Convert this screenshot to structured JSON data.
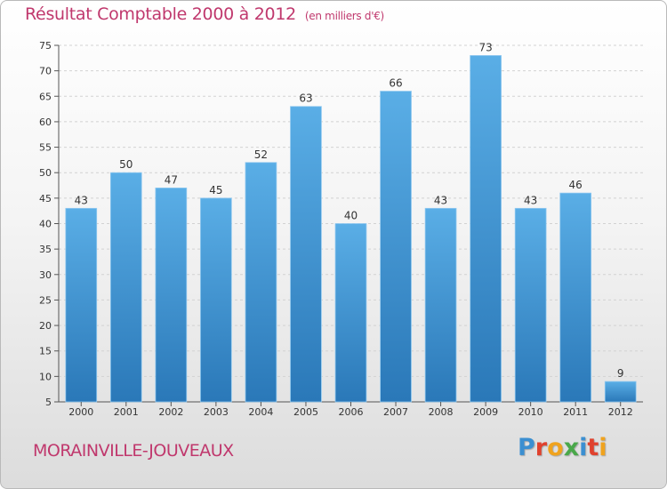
{
  "chart_data": {
    "type": "bar",
    "title": "Résultat Comptable 2000 à 2012",
    "subtitle": "(en milliers d'€)",
    "categories": [
      "2000",
      "2001",
      "2002",
      "2003",
      "2004",
      "2005",
      "2006",
      "2007",
      "2008",
      "2009",
      "2010",
      "2011",
      "2012"
    ],
    "values": [
      43,
      50,
      47,
      45,
      52,
      63,
      40,
      66,
      43,
      73,
      43,
      46,
      9
    ],
    "ylim": [
      5,
      75
    ],
    "yticks": [
      5,
      10,
      15,
      20,
      25,
      30,
      35,
      40,
      45,
      50,
      55,
      60,
      65,
      70,
      75
    ],
    "grid": true,
    "xlabel": "",
    "ylabel": "",
    "bar_color_top": "#5aaee6",
    "bar_color_bottom": "#2a78b8"
  },
  "commune": "MORAINVILLE-JOUVEAUX",
  "logo": {
    "letters": [
      "P",
      "r",
      "o",
      "x",
      "i",
      "t",
      "i"
    ],
    "colors": [
      "#3b8fd1",
      "#e0422e",
      "#f0a31e",
      "#4aa84a",
      "#3b8fd1",
      "#e0422e",
      "#f0a31e"
    ]
  }
}
